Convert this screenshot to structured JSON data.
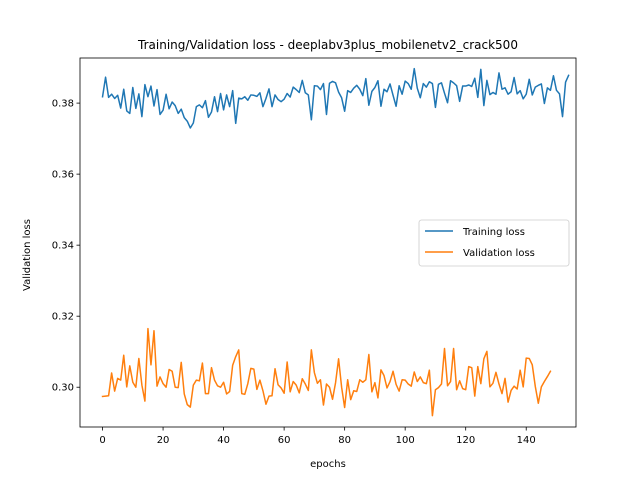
{
  "chart_data": {
    "type": "line",
    "title": "Training/Validation loss - deeplabv3plus_mobilenetv2_crack500",
    "xlabel": "epochs",
    "ylabel": "Validation loss",
    "xlim": [
      -7.45,
      156.45
    ],
    "ylim": [
      0.2888,
      0.3927
    ],
    "xticks": [
      0,
      20,
      40,
      60,
      80,
      100,
      120,
      140
    ],
    "xtick_labels": [
      "0",
      "20",
      "40",
      "60",
      "80",
      "100",
      "120",
      "140"
    ],
    "yticks": [
      0.3,
      0.32,
      0.34,
      0.36,
      0.38
    ],
    "ytick_labels": [
      "0.30",
      "0.32",
      "0.34",
      "0.36",
      "0.38"
    ],
    "legend_position": "center-right",
    "series": [
      {
        "name": "Training loss",
        "color": "#1f77b4",
        "x_start": 0,
        "values": [
          0.3818,
          0.3873,
          0.3816,
          0.3825,
          0.3813,
          0.3822,
          0.3786,
          0.3839,
          0.3778,
          0.3771,
          0.3844,
          0.3785,
          0.3826,
          0.3762,
          0.3852,
          0.3818,
          0.3848,
          0.3792,
          0.3838,
          0.3768,
          0.378,
          0.3825,
          0.3784,
          0.3803,
          0.3793,
          0.3771,
          0.3783,
          0.3759,
          0.3749,
          0.373,
          0.3744,
          0.379,
          0.3795,
          0.3787,
          0.3807,
          0.376,
          0.3775,
          0.3818,
          0.3776,
          0.3827,
          0.3781,
          0.3823,
          0.379,
          0.3835,
          0.3743,
          0.3814,
          0.3812,
          0.3818,
          0.3808,
          0.3823,
          0.3822,
          0.3819,
          0.3829,
          0.379,
          0.3813,
          0.384,
          0.379,
          0.3823,
          0.381,
          0.3804,
          0.3811,
          0.3827,
          0.3817,
          0.3845,
          0.3838,
          0.383,
          0.3864,
          0.3829,
          0.3823,
          0.3753,
          0.3849,
          0.3848,
          0.3838,
          0.3855,
          0.3768,
          0.3856,
          0.3861,
          0.3857,
          0.3831,
          0.3815,
          0.3777,
          0.3835,
          0.383,
          0.3842,
          0.385,
          0.3839,
          0.3821,
          0.3869,
          0.3794,
          0.3833,
          0.3844,
          0.3863,
          0.3791,
          0.3839,
          0.3832,
          0.3854,
          0.3822,
          0.3791,
          0.3849,
          0.3825,
          0.3862,
          0.3855,
          0.3839,
          0.3897,
          0.3842,
          0.3815,
          0.3855,
          0.3845,
          0.386,
          0.3855,
          0.3788,
          0.3853,
          0.3857,
          0.3828,
          0.3801,
          0.3863,
          0.3857,
          0.3849,
          0.3805,
          0.3848,
          0.3848,
          0.3851,
          0.3847,
          0.387,
          0.3816,
          0.3895,
          0.3793,
          0.3864,
          0.3824,
          0.383,
          0.3825,
          0.3885,
          0.3839,
          0.3843,
          0.3825,
          0.3832,
          0.3872,
          0.3826,
          0.3835,
          0.3812,
          0.3825,
          0.3867,
          0.3823,
          0.3845,
          0.385,
          0.3854,
          0.3799,
          0.3843,
          0.3836,
          0.3877,
          0.3836,
          0.3826,
          0.3762,
          0.3859,
          0.3878
        ]
      },
      {
        "name": "Validation loss",
        "color": "#ff7f0e",
        "x_start": 0,
        "values": [
          0.2974,
          0.2975,
          0.2976,
          0.304,
          0.2989,
          0.3025,
          0.302,
          0.309,
          0.3001,
          0.306,
          0.3014,
          0.3,
          0.3081,
          0.3006,
          0.2961,
          0.3165,
          0.3063,
          0.3159,
          0.3003,
          0.3029,
          0.301,
          0.3,
          0.305,
          0.3045,
          0.3,
          0.2999,
          0.307,
          0.2981,
          0.2951,
          0.2944,
          0.3006,
          0.302,
          0.3018,
          0.3068,
          0.2982,
          0.2982,
          0.3055,
          0.302,
          0.3004,
          0.3,
          0.3014,
          0.2981,
          0.2988,
          0.3062,
          0.3086,
          0.3105,
          0.2982,
          0.298,
          0.301,
          0.3053,
          0.3051,
          0.2994,
          0.302,
          0.299,
          0.2952,
          0.2975,
          0.2976,
          0.3052,
          0.3007,
          0.2998,
          0.2983,
          0.3071,
          0.2987,
          0.3016,
          0.3006,
          0.2984,
          0.3024,
          0.3009,
          0.2991,
          0.3105,
          0.3041,
          0.3011,
          0.3021,
          0.295,
          0.3009,
          0.3,
          0.2966,
          0.3013,
          0.308,
          0.3,
          0.2943,
          0.3021,
          0.2965,
          0.299,
          0.2988,
          0.3021,
          0.3014,
          0.3021,
          0.3092,
          0.2987,
          0.3013,
          0.297,
          0.3049,
          0.3033,
          0.2998,
          0.3016,
          0.3045,
          0.3008,
          0.2989,
          0.3021,
          0.302,
          0.3009,
          0.3003,
          0.3043,
          0.3016,
          0.3029,
          0.3013,
          0.301,
          0.3048,
          0.292,
          0.2993,
          0.2999,
          0.3009,
          0.3109,
          0.3004,
          0.3016,
          0.3109,
          0.2993,
          0.3018,
          0.2996,
          0.2993,
          0.3058,
          0.3055,
          0.2975,
          0.3058,
          0.301,
          0.308,
          0.3101,
          0.3001,
          0.3011,
          0.3042,
          0.3009,
          0.2982,
          0.3025,
          0.2958,
          0.2991,
          0.3003,
          0.2995,
          0.3048,
          0.3001,
          0.3082,
          0.3081,
          0.3063,
          0.3002,
          0.2955,
          0.3001,
          0.3016,
          0.303,
          0.3045
        ]
      }
    ]
  }
}
